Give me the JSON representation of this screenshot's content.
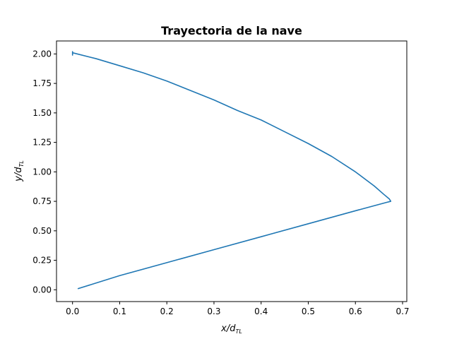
{
  "chart_data": {
    "type": "line",
    "title": "Trayectoria de la nave",
    "xlabel": {
      "main": "x/d",
      "sub": "TL"
    },
    "ylabel": {
      "main": "y/d",
      "sub": "TL"
    },
    "xlim": [
      -0.034,
      0.709
    ],
    "ylim": [
      -0.1,
      2.11
    ],
    "xticks": [
      0.0,
      0.1,
      0.2,
      0.3,
      0.4,
      0.5,
      0.6,
      0.7
    ],
    "xtick_labels": [
      "0.0",
      "0.1",
      "0.2",
      "0.3",
      "0.4",
      "0.5",
      "0.6",
      "0.7"
    ],
    "yticks": [
      0.0,
      0.25,
      0.5,
      0.75,
      1.0,
      1.25,
      1.5,
      1.75,
      2.0
    ],
    "ytick_labels": [
      "0.00",
      "0.25",
      "0.50",
      "0.75",
      "1.00",
      "1.25",
      "1.50",
      "1.75",
      "2.00"
    ],
    "grid": false,
    "series": [
      {
        "color": "#1f77b4",
        "x": [
          0.012,
          0.1,
          0.2,
          0.3,
          0.4,
          0.5,
          0.6,
          0.665,
          0.675,
          0.672,
          0.66,
          0.64,
          0.6,
          0.55,
          0.5,
          0.45,
          0.4,
          0.35,
          0.3,
          0.25,
          0.2,
          0.15,
          0.1,
          0.05,
          0.0,
          0.0,
          0.0
        ],
        "y": [
          0.01,
          0.12,
          0.23,
          0.34,
          0.45,
          0.56,
          0.67,
          0.74,
          0.75,
          0.77,
          0.81,
          0.88,
          1.0,
          1.13,
          1.24,
          1.34,
          1.44,
          1.52,
          1.61,
          1.69,
          1.77,
          1.84,
          1.9,
          1.96,
          2.01,
          2.02,
          1.99
        ]
      }
    ]
  }
}
